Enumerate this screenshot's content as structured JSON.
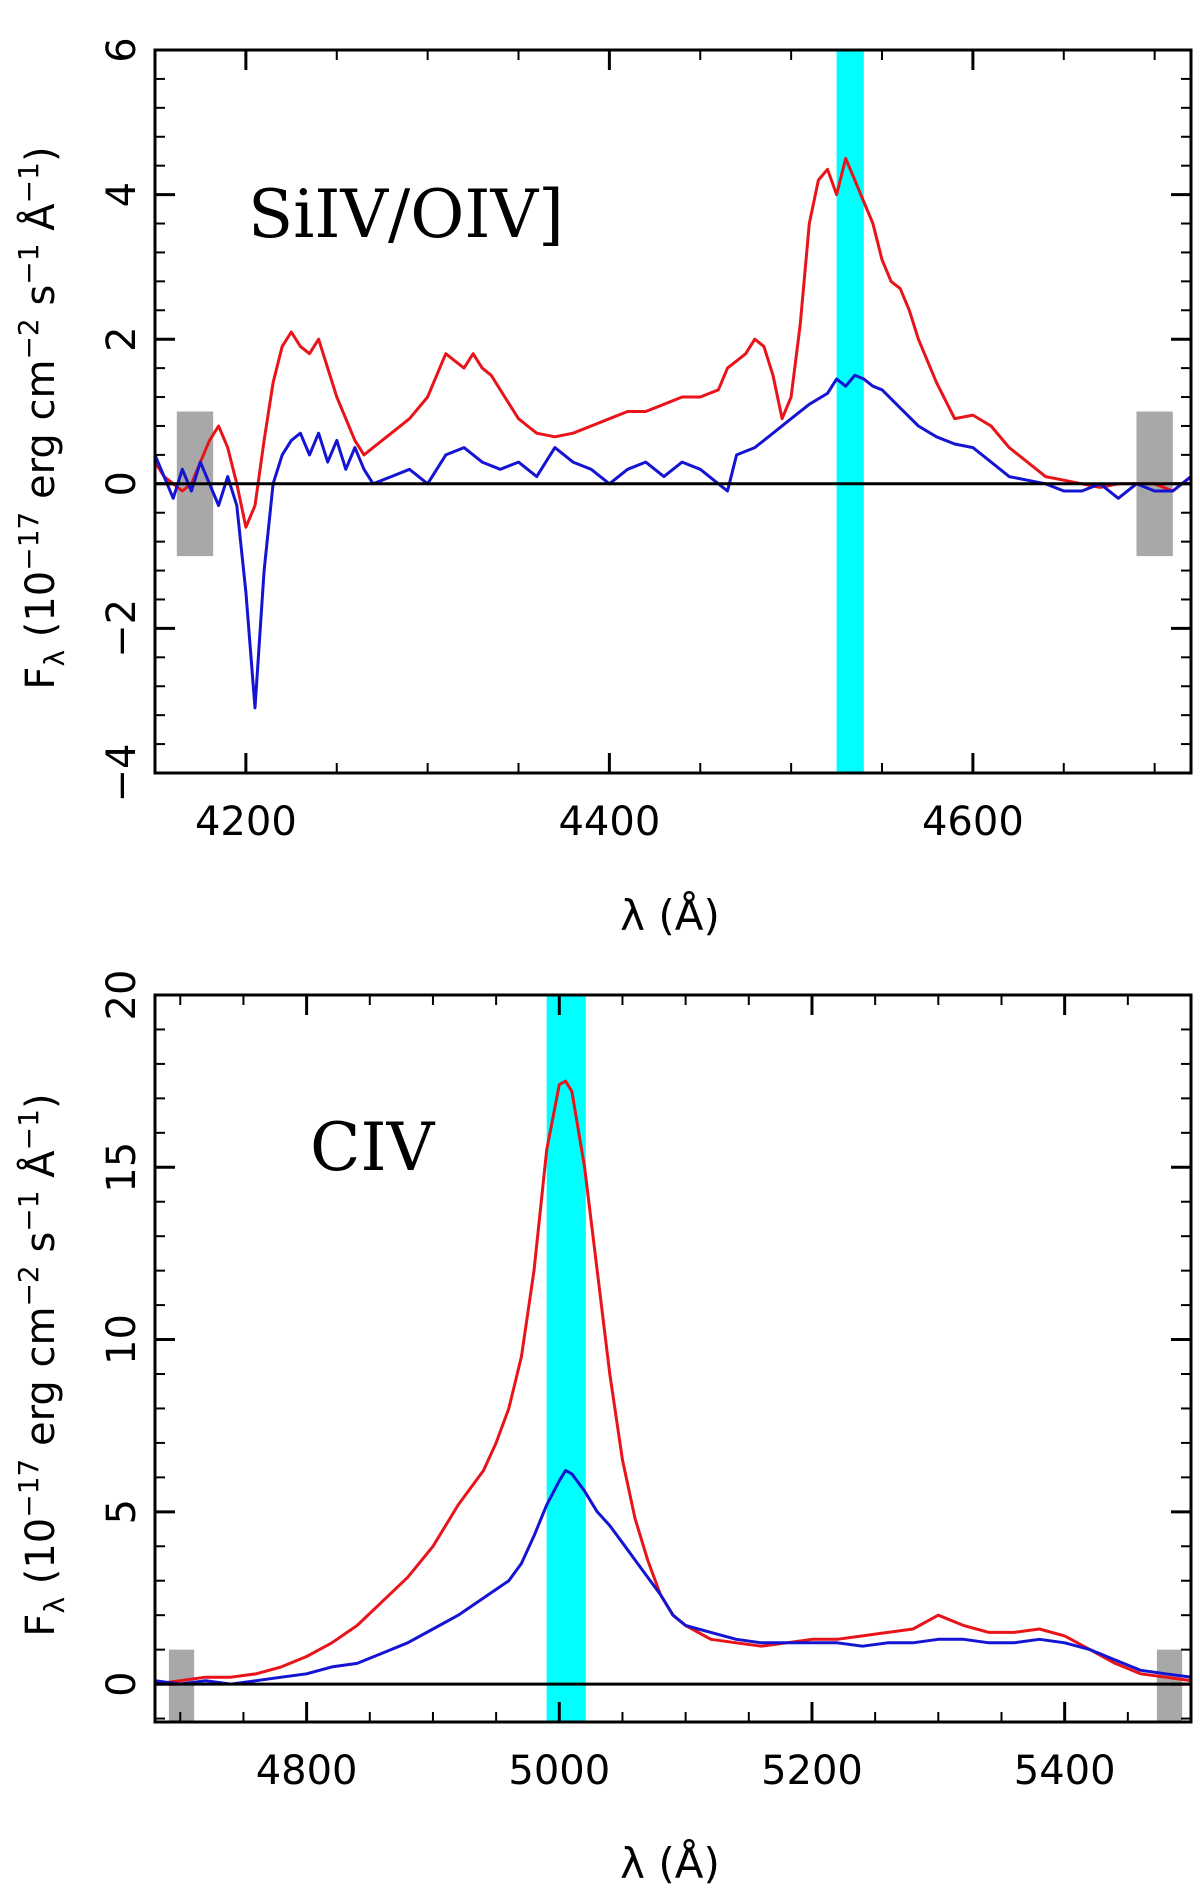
{
  "chart_data": [
    {
      "type": "line",
      "title": "",
      "annotation": "SiIV/OIV]",
      "xlabel": "λ (Å)",
      "ylabel": "F",
      "ylabel_sub": "λ",
      "ylabel_rest": " (10",
      "ylabel_exp1": "−17",
      "ylabel_mid": " erg cm",
      "ylabel_exp2": "−2",
      "ylabel_mid2": " s",
      "ylabel_exp3": "−1",
      "ylabel_mid3": " Å",
      "ylabel_exp4": "−1",
      "ylabel_end": ")",
      "xlim": [
        4150,
        4720
      ],
      "ylim": [
        -4,
        6
      ],
      "xticks_labeled": [
        "4200",
        "4400",
        "4600"
      ],
      "xtick_values": [
        4200,
        4400,
        4600
      ],
      "yticks_labeled": [
        "−4",
        "−2",
        "0",
        "2",
        "4",
        "6"
      ],
      "ytick_values": [
        -4,
        -2,
        0,
        2,
        4,
        6
      ],
      "zero_line": true,
      "highlight_band": {
        "x": [
          4525,
          4540
        ],
        "color": "#00FFFF"
      },
      "continuum_windows": [
        {
          "x": [
            4162,
            4182
          ],
          "y": [
            -1,
            1
          ],
          "color": "#A8A8A8"
        },
        {
          "x": [
            4690,
            4710
          ],
          "y": [
            -1,
            1
          ],
          "color": "#A8A8A8"
        }
      ],
      "series": [
        {
          "name": "red spectrum",
          "color": "#E8141A",
          "x": [
            4150,
            4155,
            4160,
            4165,
            4170,
            4175,
            4180,
            4185,
            4190,
            4195,
            4200,
            4205,
            4210,
            4215,
            4220,
            4225,
            4230,
            4235,
            4240,
            4245,
            4250,
            4255,
            4260,
            4265,
            4270,
            4280,
            4290,
            4300,
            4305,
            4310,
            4315,
            4320,
            4325,
            4330,
            4335,
            4340,
            4345,
            4350,
            4355,
            4360,
            4370,
            4380,
            4390,
            4400,
            4410,
            4420,
            4430,
            4440,
            4450,
            4460,
            4465,
            4470,
            4475,
            4480,
            4485,
            4490,
            4495,
            4500,
            4505,
            4510,
            4515,
            4520,
            4525,
            4530,
            4535,
            4540,
            4545,
            4550,
            4555,
            4560,
            4565,
            4570,
            4580,
            4590,
            4600,
            4610,
            4620,
            4630,
            4640,
            4650,
            4660,
            4670,
            4680,
            4690,
            4700,
            4710,
            4720
          ],
          "y": [
            0.3,
            0.1,
            0.0,
            -0.1,
            0.0,
            0.3,
            0.6,
            0.8,
            0.5,
            0.0,
            -0.6,
            -0.3,
            0.6,
            1.4,
            1.9,
            2.1,
            1.9,
            1.8,
            2.0,
            1.6,
            1.2,
            0.9,
            0.6,
            0.4,
            0.5,
            0.7,
            0.9,
            1.2,
            1.5,
            1.8,
            1.7,
            1.6,
            1.8,
            1.6,
            1.5,
            1.3,
            1.1,
            0.9,
            0.8,
            0.7,
            0.65,
            0.7,
            0.8,
            0.9,
            1.0,
            1.0,
            1.1,
            1.2,
            1.2,
            1.3,
            1.6,
            1.7,
            1.8,
            2.0,
            1.9,
            1.5,
            0.9,
            1.2,
            2.2,
            3.6,
            4.2,
            4.35,
            4.0,
            4.5,
            4.2,
            3.9,
            3.6,
            3.1,
            2.8,
            2.7,
            2.4,
            2.0,
            1.4,
            0.9,
            0.95,
            0.8,
            0.5,
            0.3,
            0.1,
            0.05,
            0.0,
            -0.05,
            0.0,
            0.0,
            0.0,
            -0.1,
            0.1
          ]
        },
        {
          "name": "blue spectrum",
          "color": "#1414D2",
          "x": [
            4150,
            4155,
            4160,
            4165,
            4170,
            4175,
            4180,
            4185,
            4190,
            4195,
            4200,
            4205,
            4210,
            4215,
            4220,
            4225,
            4230,
            4235,
            4240,
            4245,
            4250,
            4255,
            4260,
            4265,
            4270,
            4280,
            4290,
            4300,
            4310,
            4320,
            4330,
            4340,
            4350,
            4360,
            4370,
            4380,
            4390,
            4400,
            4410,
            4420,
            4430,
            4440,
            4450,
            4460,
            4465,
            4470,
            4480,
            4490,
            4500,
            4510,
            4520,
            4525,
            4530,
            4535,
            4540,
            4545,
            4550,
            4560,
            4570,
            4580,
            4590,
            4600,
            4610,
            4620,
            4630,
            4640,
            4650,
            4660,
            4670,
            4680,
            4690,
            4700,
            4710,
            4720
          ],
          "y": [
            0.4,
            0.1,
            -0.2,
            0.2,
            -0.1,
            0.3,
            0.0,
            -0.3,
            0.1,
            -0.3,
            -1.5,
            -3.1,
            -1.2,
            0.0,
            0.4,
            0.6,
            0.7,
            0.4,
            0.7,
            0.3,
            0.6,
            0.2,
            0.5,
            0.2,
            0.0,
            0.1,
            0.2,
            0.0,
            0.4,
            0.5,
            0.3,
            0.2,
            0.3,
            0.1,
            0.5,
            0.3,
            0.2,
            0.0,
            0.2,
            0.3,
            0.1,
            0.3,
            0.2,
            0.0,
            -0.1,
            0.4,
            0.5,
            0.7,
            0.9,
            1.1,
            1.25,
            1.45,
            1.35,
            1.5,
            1.45,
            1.35,
            1.3,
            1.05,
            0.8,
            0.65,
            0.55,
            0.5,
            0.3,
            0.1,
            0.05,
            0.0,
            -0.1,
            -0.1,
            0.0,
            -0.2,
            0.0,
            -0.1,
            -0.1,
            0.1
          ]
        }
      ]
    },
    {
      "type": "line",
      "title": "",
      "annotation": "CIV",
      "xlabel": "λ (Å)",
      "ylabel": "F",
      "ylabel_sub": "λ",
      "ylabel_rest": " (10",
      "ylabel_exp1": "−17",
      "ylabel_mid": " erg cm",
      "ylabel_exp2": "−2",
      "ylabel_mid2": " s",
      "ylabel_exp3": "−1",
      "ylabel_mid3": " Å",
      "ylabel_exp4": "−1",
      "ylabel_end": ")",
      "xlim": [
        4680,
        5500
      ],
      "ylim": [
        -1.1,
        20
      ],
      "xticks_labeled": [
        "4800",
        "5000",
        "5200",
        "5400"
      ],
      "xtick_values": [
        4800,
        5000,
        5200,
        5400
      ],
      "yticks_labeled": [
        "0",
        "5",
        "10",
        "15",
        "20"
      ],
      "ytick_values": [
        0,
        5,
        10,
        15,
        20
      ],
      "zero_line": true,
      "highlight_band": {
        "x": [
          4990,
          5021
        ],
        "color": "#00FFFF"
      },
      "continuum_windows": [
        {
          "x": [
            4691,
            4711
          ],
          "y": [
            -1.1,
            1.0
          ],
          "color": "#A8A8A8"
        },
        {
          "x": [
            5473,
            5493
          ],
          "y": [
            -1.1,
            1.0
          ],
          "color": "#A8A8A8"
        }
      ],
      "series": [
        {
          "name": "red spectrum",
          "color": "#E8141A",
          "x": [
            4680,
            4700,
            4720,
            4740,
            4760,
            4780,
            4800,
            4820,
            4840,
            4860,
            4880,
            4900,
            4920,
            4940,
            4950,
            4960,
            4970,
            4980,
            4990,
            5000,
            5005,
            5010,
            5020,
            5030,
            5040,
            5050,
            5060,
            5070,
            5080,
            5090,
            5100,
            5120,
            5140,
            5160,
            5180,
            5200,
            5220,
            5240,
            5260,
            5280,
            5300,
            5320,
            5340,
            5360,
            5380,
            5400,
            5420,
            5440,
            5460,
            5480,
            5500
          ],
          "y": [
            0.0,
            0.1,
            0.2,
            0.2,
            0.3,
            0.5,
            0.8,
            1.2,
            1.7,
            2.4,
            3.1,
            4.0,
            5.2,
            6.2,
            7.0,
            8.0,
            9.5,
            12.0,
            15.5,
            17.4,
            17.5,
            17.2,
            15.0,
            12.0,
            9.0,
            6.5,
            4.8,
            3.6,
            2.6,
            2.0,
            1.7,
            1.3,
            1.2,
            1.1,
            1.2,
            1.3,
            1.3,
            1.4,
            1.5,
            1.6,
            2.0,
            1.7,
            1.5,
            1.5,
            1.6,
            1.4,
            1.0,
            0.6,
            0.3,
            0.2,
            0.1
          ]
        },
        {
          "name": "blue spectrum",
          "color": "#1414D2",
          "x": [
            4680,
            4700,
            4720,
            4740,
            4760,
            4780,
            4800,
            4820,
            4840,
            4860,
            4880,
            4900,
            4920,
            4940,
            4960,
            4970,
            4980,
            4990,
            5000,
            5005,
            5010,
            5020,
            5030,
            5040,
            5050,
            5060,
            5070,
            5080,
            5090,
            5100,
            5120,
            5140,
            5160,
            5180,
            5200,
            5220,
            5240,
            5260,
            5280,
            5300,
            5320,
            5340,
            5360,
            5380,
            5400,
            5420,
            5440,
            5460,
            5480,
            5500
          ],
          "y": [
            0.1,
            0.0,
            0.1,
            0.0,
            0.1,
            0.2,
            0.3,
            0.5,
            0.6,
            0.9,
            1.2,
            1.6,
            2.0,
            2.5,
            3.0,
            3.5,
            4.3,
            5.2,
            5.9,
            6.2,
            6.1,
            5.6,
            5.0,
            4.6,
            4.1,
            3.6,
            3.1,
            2.6,
            2.0,
            1.7,
            1.5,
            1.3,
            1.2,
            1.2,
            1.2,
            1.2,
            1.1,
            1.2,
            1.2,
            1.3,
            1.3,
            1.2,
            1.2,
            1.3,
            1.2,
            1.0,
            0.7,
            0.4,
            0.3,
            0.2
          ]
        }
      ]
    }
  ]
}
